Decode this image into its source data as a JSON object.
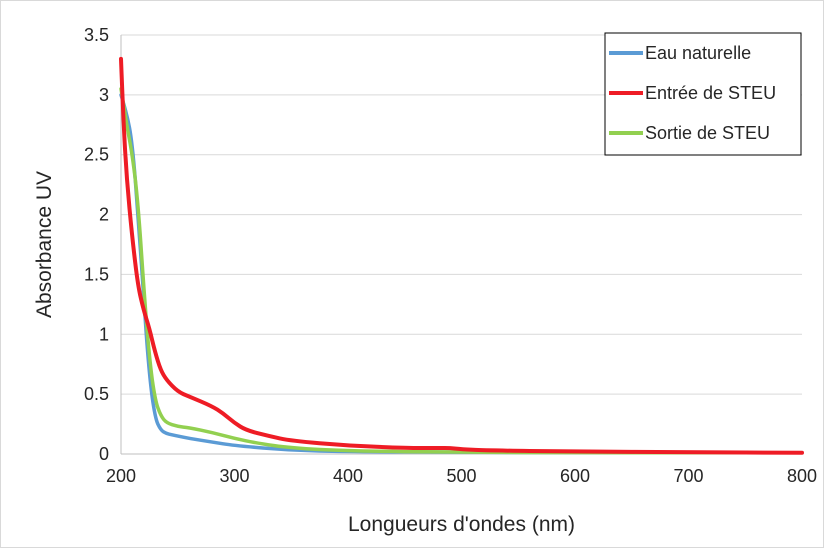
{
  "chart_data": {
    "type": "line",
    "title": "",
    "xlabel": "Longueurs d'ondes (nm)",
    "ylabel": "Absorbance UV",
    "xlim": [
      200,
      800
    ],
    "ylim": [
      0,
      3.5
    ],
    "xticks": [
      200,
      300,
      400,
      500,
      600,
      700,
      800
    ],
    "xtick_labels": [
      "200",
      "300",
      "400",
      "500",
      "600",
      "700",
      "800"
    ],
    "yticks": [
      0,
      0.5,
      1,
      1.5,
      2,
      2.5,
      3,
      3.5
    ],
    "ytick_labels": [
      "0",
      "0.5",
      "1",
      "1.5",
      "2",
      "2.5",
      "3",
      "3.5"
    ],
    "grid": "horizontal",
    "legend_position": "top-right",
    "series": [
      {
        "name": "Eau naturelle",
        "color": "#5b9bd5",
        "x": [
          200,
          205,
          210,
          215,
          220,
          225,
          230,
          235,
          240,
          245,
          250,
          260,
          280,
          300,
          350,
          400,
          500,
          600,
          700,
          800
        ],
        "y": [
          3.0,
          2.85,
          2.6,
          2.0,
          1.3,
          0.65,
          0.3,
          0.2,
          0.17,
          0.16,
          0.15,
          0.13,
          0.1,
          0.07,
          0.03,
          0.02,
          0.015,
          0.012,
          0.01,
          0.01
        ]
      },
      {
        "name": "Entrée de STEU",
        "color": "#ee1c25",
        "x": [
          200,
          202,
          205,
          210,
          215,
          220,
          225,
          230,
          235,
          240,
          250,
          260,
          280,
          290,
          300,
          310,
          330,
          350,
          400,
          450,
          480,
          490,
          500,
          520,
          600,
          700,
          800
        ],
        "y": [
          3.3,
          2.8,
          2.3,
          1.8,
          1.4,
          1.2,
          1.05,
          0.85,
          0.7,
          0.62,
          0.52,
          0.48,
          0.4,
          0.34,
          0.26,
          0.2,
          0.15,
          0.11,
          0.07,
          0.05,
          0.05,
          0.05,
          0.04,
          0.03,
          0.02,
          0.015,
          0.01
        ]
      },
      {
        "name": "Sortie de STEU",
        "color": "#92d050",
        "x": [
          200,
          205,
          210,
          215,
          220,
          225,
          230,
          235,
          240,
          250,
          260,
          280,
          300,
          320,
          350,
          400,
          500,
          600,
          700,
          800
        ],
        "y": [
          3.05,
          2.75,
          2.5,
          2.1,
          1.4,
          0.8,
          0.45,
          0.32,
          0.26,
          0.23,
          0.22,
          0.18,
          0.13,
          0.09,
          0.05,
          0.025,
          0.015,
          0.01,
          0.01,
          0.01
        ]
      }
    ]
  }
}
